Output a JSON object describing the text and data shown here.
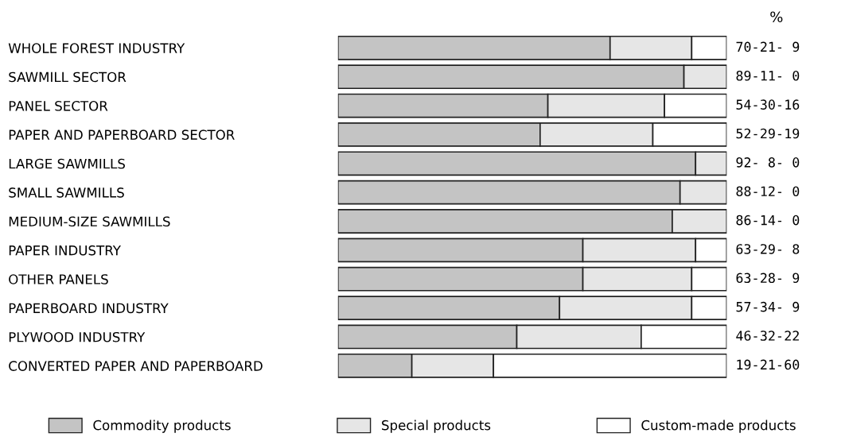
{
  "chart_data": {
    "type": "bar",
    "orientation": "horizontal",
    "stacked": true,
    "tick_labels": "y",
    "legend": "bottom",
    "grid": false,
    "categories": [
      "WHOLE FOREST INDUSTRY",
      "SAWMILL SECTOR",
      "PANEL SECTOR",
      "PAPER AND PAPERBOARD SECTOR",
      "LARGE SAWMILLS",
      "SMALL SAWMILLS",
      "MEDIUM-SIZE SAWMILLS",
      "PAPER INDUSTRY",
      "OTHER PANELS",
      "PAPERBOARD INDUSTRY",
      "PLYWOOD INDUSTRY",
      "CONVERTED PAPER AND PAPERBOARD"
    ],
    "series": [
      {
        "name": "Commodity products",
        "color": "#c4c4c4",
        "values": [
          70,
          89,
          54,
          52,
          92,
          88,
          86,
          63,
          63,
          57,
          46,
          19
        ],
        "value_labels": [
          "70-",
          "89-",
          "54-",
          "52-",
          "92-",
          "88-",
          "86-",
          "63-",
          "63-",
          "57-",
          "46-",
          "19-"
        ]
      },
      {
        "name": "Special products",
        "color": "#e6e6e6",
        "values": [
          21,
          11,
          30,
          29,
          8,
          12,
          14,
          29,
          28,
          34,
          32,
          21
        ],
        "value_labels": [
          "21-",
          "11-",
          "30-",
          "29-",
          " 8-",
          "12-",
          "14-",
          "29-",
          "28-",
          "34-",
          "32-",
          "21-"
        ]
      },
      {
        "name": "Custom-made products",
        "color": "#ffffff",
        "values": [
          9,
          0,
          16,
          19,
          0,
          0,
          0,
          8,
          9,
          9,
          22,
          60
        ],
        "value_labels": [
          " 9",
          " 0",
          "16",
          "19",
          " 0",
          " 0",
          " 0",
          " 8",
          " 9",
          " 9",
          "22",
          "60"
        ]
      }
    ],
    "annotations": [
      "%"
    ]
  }
}
